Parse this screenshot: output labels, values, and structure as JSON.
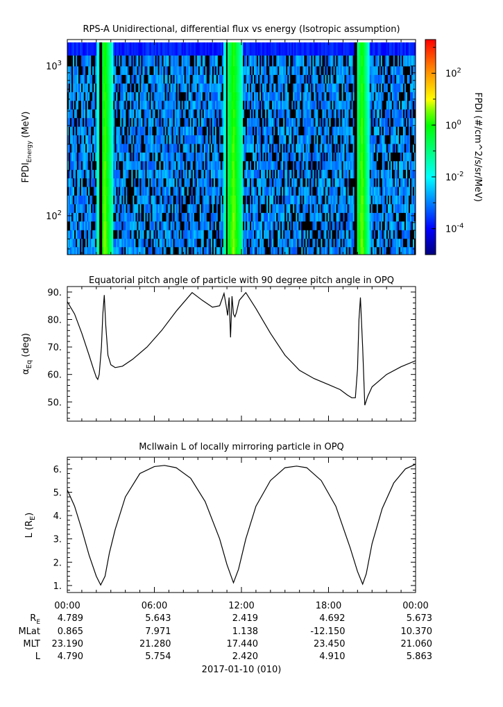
{
  "chart_data": [
    {
      "type": "heatmap",
      "title": "RPS-A Unidirectional, differential flux vs energy (Isotropic assumption)",
      "ylabel": "FPDI",
      "ylabel_sub": "Energy",
      "ylabel_unit": "(MeV)",
      "y_scale": "log",
      "ylim": [
        55,
        1500
      ],
      "yticks": [
        {
          "value": 100,
          "base": "10",
          "exp": "2"
        },
        {
          "value": 1000,
          "base": "10",
          "exp": "3"
        }
      ],
      "energy_channels_MeV": [
        58,
        66,
        75,
        86,
        98,
        112,
        128,
        146,
        167,
        190,
        217,
        248,
        283,
        323,
        369,
        421,
        481,
        549,
        627,
        716,
        817,
        933,
        1065,
        1300
      ],
      "bright_bands_hours": [
        {
          "center": 2.6,
          "halfwidth": 0.55
        },
        {
          "center": 11.45,
          "halfwidth": 0.7
        },
        {
          "center": 20.3,
          "halfwidth": 0.5
        }
      ],
      "gaps_hours": [
        2.3,
        11.0,
        19.9
      ],
      "colorbar": {
        "label": "FPDI (#/cm^2/s/sr/MeV)",
        "scale": "log",
        "range_exp": [
          -5,
          3.3
        ],
        "ticks": [
          {
            "exp": 2,
            "label_base": "10",
            "label_exp": "2"
          },
          {
            "exp": 0,
            "label_base": "10",
            "label_exp": "0"
          },
          {
            "exp": -2,
            "label_base": "10",
            "label_exp": "-2"
          },
          {
            "exp": -4,
            "label_base": "10",
            "label_exp": "-4"
          }
        ]
      }
    },
    {
      "type": "line",
      "title": "Equatorial pitch angle of particle with 90 degree pitch angle in OPQ",
      "ylabel": "α",
      "ylabel_sub": "Eq",
      "ylabel_unit": "(deg)",
      "ylim": [
        43,
        92
      ],
      "yticks": [
        "50.",
        "60.",
        "70.",
        "80.",
        "90."
      ],
      "x_hours": [
        0,
        0.5,
        1.0,
        1.5,
        1.8,
        2.0,
        2.1,
        2.2,
        2.35,
        2.45,
        2.55,
        2.65,
        2.8,
        3.0,
        3.3,
        3.8,
        4.5,
        5.5,
        6.5,
        7.5,
        8.6,
        9.3,
        10.0,
        10.5,
        10.8,
        10.95,
        11.05,
        11.15,
        11.25,
        11.35,
        11.45,
        11.55,
        11.65,
        11.85,
        12.3,
        13.0,
        14.0,
        15.0,
        16.0,
        17.0,
        18.0,
        18.8,
        19.3,
        19.6,
        19.85,
        20.0,
        20.1,
        20.2,
        20.35,
        20.5,
        20.7,
        21.0,
        22.0,
        23.0,
        24.0
      ],
      "y_deg": [
        86.5,
        82,
        75,
        67,
        62,
        59,
        58.2,
        60,
        70,
        82,
        88.9,
        78,
        67,
        63.5,
        62.5,
        63,
        65.5,
        70,
        76,
        83,
        89.8,
        87,
        84.5,
        85,
        89.5,
        85,
        81.5,
        88,
        73.5,
        88.5,
        82,
        81,
        82.5,
        87,
        89.8,
        84,
        75,
        67,
        61.5,
        58.5,
        56.3,
        54.5,
        52.5,
        51.5,
        51.5,
        62,
        80,
        88,
        70,
        48.8,
        52,
        55.5,
        60,
        62.8,
        65
      ]
    },
    {
      "type": "line",
      "title": "McIlwain L of locally mirroring particle in OPQ",
      "ylabel": "L",
      "ylabel_unit": "(R",
      "ylabel_unit_sub": "E",
      "ylabel_unit_end": ")",
      "ylim": [
        0.7,
        6.5
      ],
      "yticks": [
        "1.",
        "2.",
        "3.",
        "4.",
        "5.",
        "6."
      ],
      "x_hours": [
        0,
        0.5,
        1.0,
        1.5,
        2.0,
        2.3,
        2.6,
        2.9,
        3.3,
        4.0,
        5.0,
        6.0,
        6.7,
        7.5,
        8.5,
        9.5,
        10.5,
        11.0,
        11.45,
        11.8,
        12.3,
        13.0,
        14.0,
        15.0,
        15.8,
        16.5,
        17.5,
        18.5,
        19.5,
        20.0,
        20.35,
        20.6,
        21.0,
        21.7,
        22.5,
        23.3,
        24.0
      ],
      "y_L": [
        5.1,
        4.4,
        3.4,
        2.3,
        1.4,
        1.02,
        1.4,
        2.4,
        3.4,
        4.8,
        5.8,
        6.1,
        6.15,
        6.05,
        5.6,
        4.6,
        3.0,
        1.9,
        1.12,
        1.7,
        3.0,
        4.4,
        5.5,
        6.05,
        6.12,
        6.05,
        5.5,
        4.4,
        2.6,
        1.6,
        1.06,
        1.5,
        2.8,
        4.3,
        5.4,
        6.0,
        6.2
      ]
    }
  ],
  "xaxis": {
    "tick_labels": [
      "00:00",
      "06:00",
      "12:00",
      "18:00",
      "00:00"
    ],
    "date_label": "2017-01-10 (010)"
  },
  "ephemeris": {
    "row_labels": [
      {
        "main": "R",
        "sub": "E"
      },
      {
        "main": "MLat",
        "sub": ""
      },
      {
        "main": "MLT",
        "sub": ""
      },
      {
        "main": "L",
        "sub": ""
      }
    ],
    "rows": [
      [
        "4.789",
        "5.643",
        "2.419",
        "4.692",
        "5.673"
      ],
      [
        "0.865",
        "7.971",
        "1.138",
        "-12.150",
        "10.370"
      ],
      [
        "23.190",
        "21.280",
        "17.440",
        "23.450",
        "21.060"
      ],
      [
        "4.790",
        "5.754",
        "2.420",
        "4.910",
        "5.863"
      ]
    ]
  }
}
